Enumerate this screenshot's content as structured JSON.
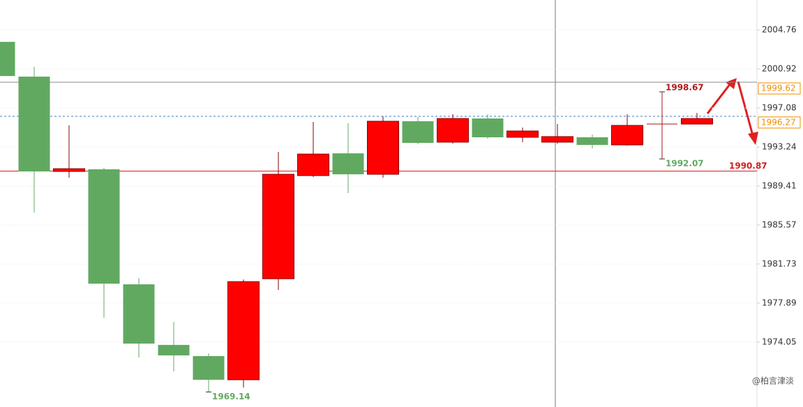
{
  "chart_data": {
    "type": "candlestick",
    "categories": [
      null,
      null,
      null,
      null,
      null,
      null,
      null,
      null,
      null,
      null,
      null,
      null,
      null,
      null,
      null,
      null,
      null,
      null,
      null,
      null,
      null
    ],
    "open": [
      2003.59,
      2000.17,
      1990.84,
      1991.05,
      1979.73,
      1973.77,
      1972.67,
      1970.34,
      1980.28,
      1990.43,
      1992.62,
      1990.56,
      1995.78,
      1993.72,
      1996.05,
      1994.2,
      1993.72,
      1994.2,
      1993.45,
      1995.5,
      1995.5
    ],
    "high": [
      2003.59,
      2001.13,
      1995.37,
      1991.18,
      1980.35,
      1976.03,
      1972.94,
      1980.21,
      1992.76,
      1995.71,
      1995.57,
      1996.26,
      1996.19,
      1996.46,
      1996.46,
      1995.16,
      1995.5,
      1994.47,
      1996.46,
      1998.67,
      1996.6
    ],
    "low": [
      2000.23,
      1986.79,
      1990.22,
      1976.44,
      1972.53,
      1971.16,
      1969.14,
      1969.58,
      1979.18,
      1990.29,
      1988.71,
      1990.22,
      1993.51,
      1993.58,
      1994.06,
      1993.72,
      1993.58,
      1993.1,
      1993.38,
      1992.07,
      1995.5
    ],
    "close": [
      2000.23,
      1990.84,
      1991.11,
      1979.8,
      1973.9,
      1972.74,
      1970.34,
      1980.0,
      1990.56,
      1992.55,
      1990.56,
      1995.78,
      1993.65,
      1996.05,
      1994.2,
      1994.82,
      1994.27,
      1993.45,
      1995.37,
      1995.5,
      1996.05
    ],
    "up_color": "#ff0000",
    "down_color": "#61a961",
    "doji_color": "#a01818",
    "ylim": [
      1967.66,
      2007.71
    ],
    "yticks": [
      2004.76,
      2000.92,
      1997.08,
      1993.24,
      1989.41,
      1985.57,
      1981.73,
      1977.89,
      1974.05
    ],
    "grid": true,
    "hlines": [
      {
        "value": 1999.62,
        "color": "#888888",
        "style": "solid",
        "label_color": "#f08c00"
      },
      {
        "value": 1996.27,
        "color": "#3a7fc4",
        "style": "dashed",
        "label_color": "#f08c00"
      },
      {
        "value": 1990.87,
        "color": "#d02020",
        "style": "solid",
        "label_color": "#d02020"
      }
    ],
    "watermark": "@柏言津淡"
  }
}
